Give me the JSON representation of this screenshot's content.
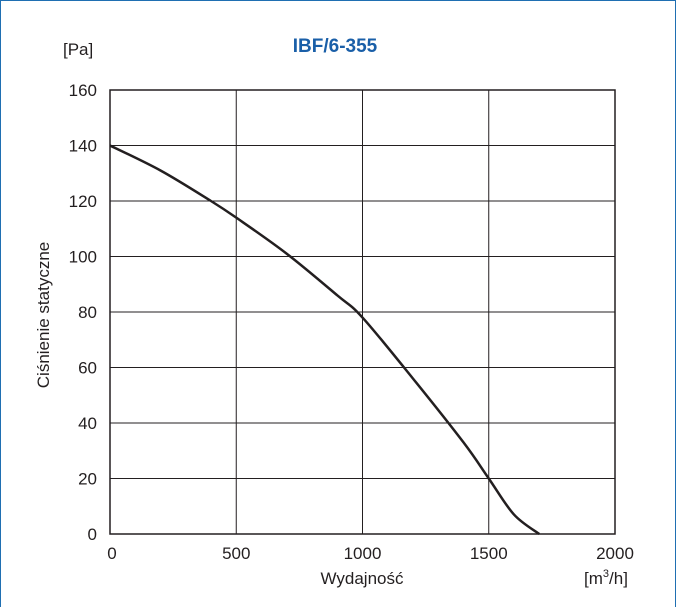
{
  "chart_data": {
    "type": "line",
    "title": "IBF/6-355",
    "xlabel": "Wydajność",
    "ylabel": "Ciśnienie statyczne",
    "x_unit_prefix": "[m",
    "x_unit_sup": "3",
    "x_unit_suffix": "/h]",
    "y_unit": "[Pa]",
    "xlim": [
      0,
      2000
    ],
    "ylim": [
      0,
      160
    ],
    "x_ticks": [
      "0",
      "500",
      "1000",
      "1500",
      "2000"
    ],
    "y_ticks": [
      "0",
      "20",
      "40",
      "60",
      "80",
      "100",
      "120",
      "140",
      "160"
    ],
    "grid": true,
    "series": [
      {
        "x": [
          0,
          200,
          400,
          500,
          700,
          900,
          1000,
          1200,
          1400,
          1500,
          1600,
          1700
        ],
        "y": [
          140,
          131,
          120,
          114,
          101,
          86,
          78,
          56,
          33,
          20,
          7,
          0
        ]
      }
    ]
  }
}
